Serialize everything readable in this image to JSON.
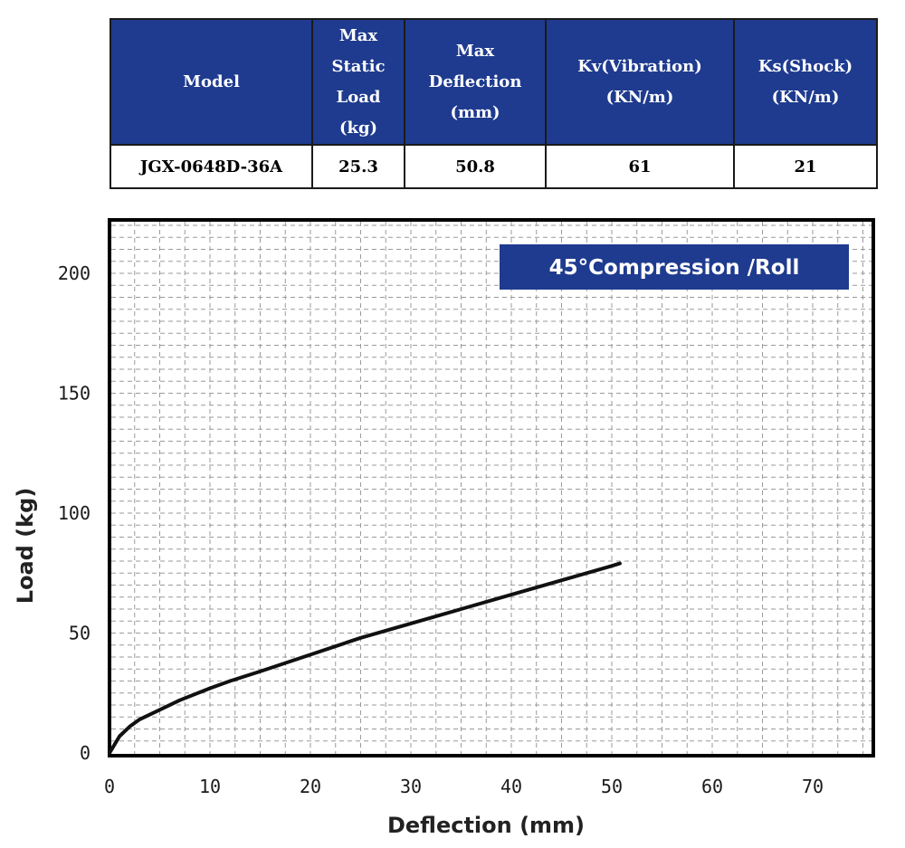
{
  "table": {
    "headers": [
      "Model",
      "Max\nStatic\nLoad\n(kg)",
      "Max\nDeflection\n(mm)",
      "Kv(Vibration)\n(KN/m)",
      "Ks(Shock)\n(KN/m)"
    ],
    "row": [
      "JGX-0648D-36A",
      "25.3",
      "50.8",
      "61",
      "21"
    ]
  },
  "colors": {
    "header_bg": "#1f3b8f",
    "badge_bg": "#1f3b8f",
    "curve": "#111111",
    "grid": "#9a9a9a"
  },
  "chart_data": {
    "type": "line",
    "title": "45°Compression /Roll",
    "xlabel": "Deflection (mm)",
    "ylabel": "Load (kg)",
    "xlim": [
      0,
      76
    ],
    "ylim": [
      0,
      222
    ],
    "x_ticks": [
      "0",
      "10",
      "20",
      "30",
      "40",
      "50",
      "60",
      "70"
    ],
    "y_ticks": [
      "0",
      "50",
      "100",
      "150",
      "200"
    ],
    "grid": true,
    "series": [
      {
        "x": [
          0,
          1,
          2,
          3,
          5,
          7,
          10,
          12,
          15,
          20,
          25,
          30,
          35,
          40,
          45,
          50,
          50.8
        ],
        "y": [
          0,
          7,
          11,
          14,
          18,
          22,
          27,
          30,
          34,
          41,
          48,
          54,
          60,
          66,
          72,
          78,
          79
        ]
      }
    ]
  }
}
